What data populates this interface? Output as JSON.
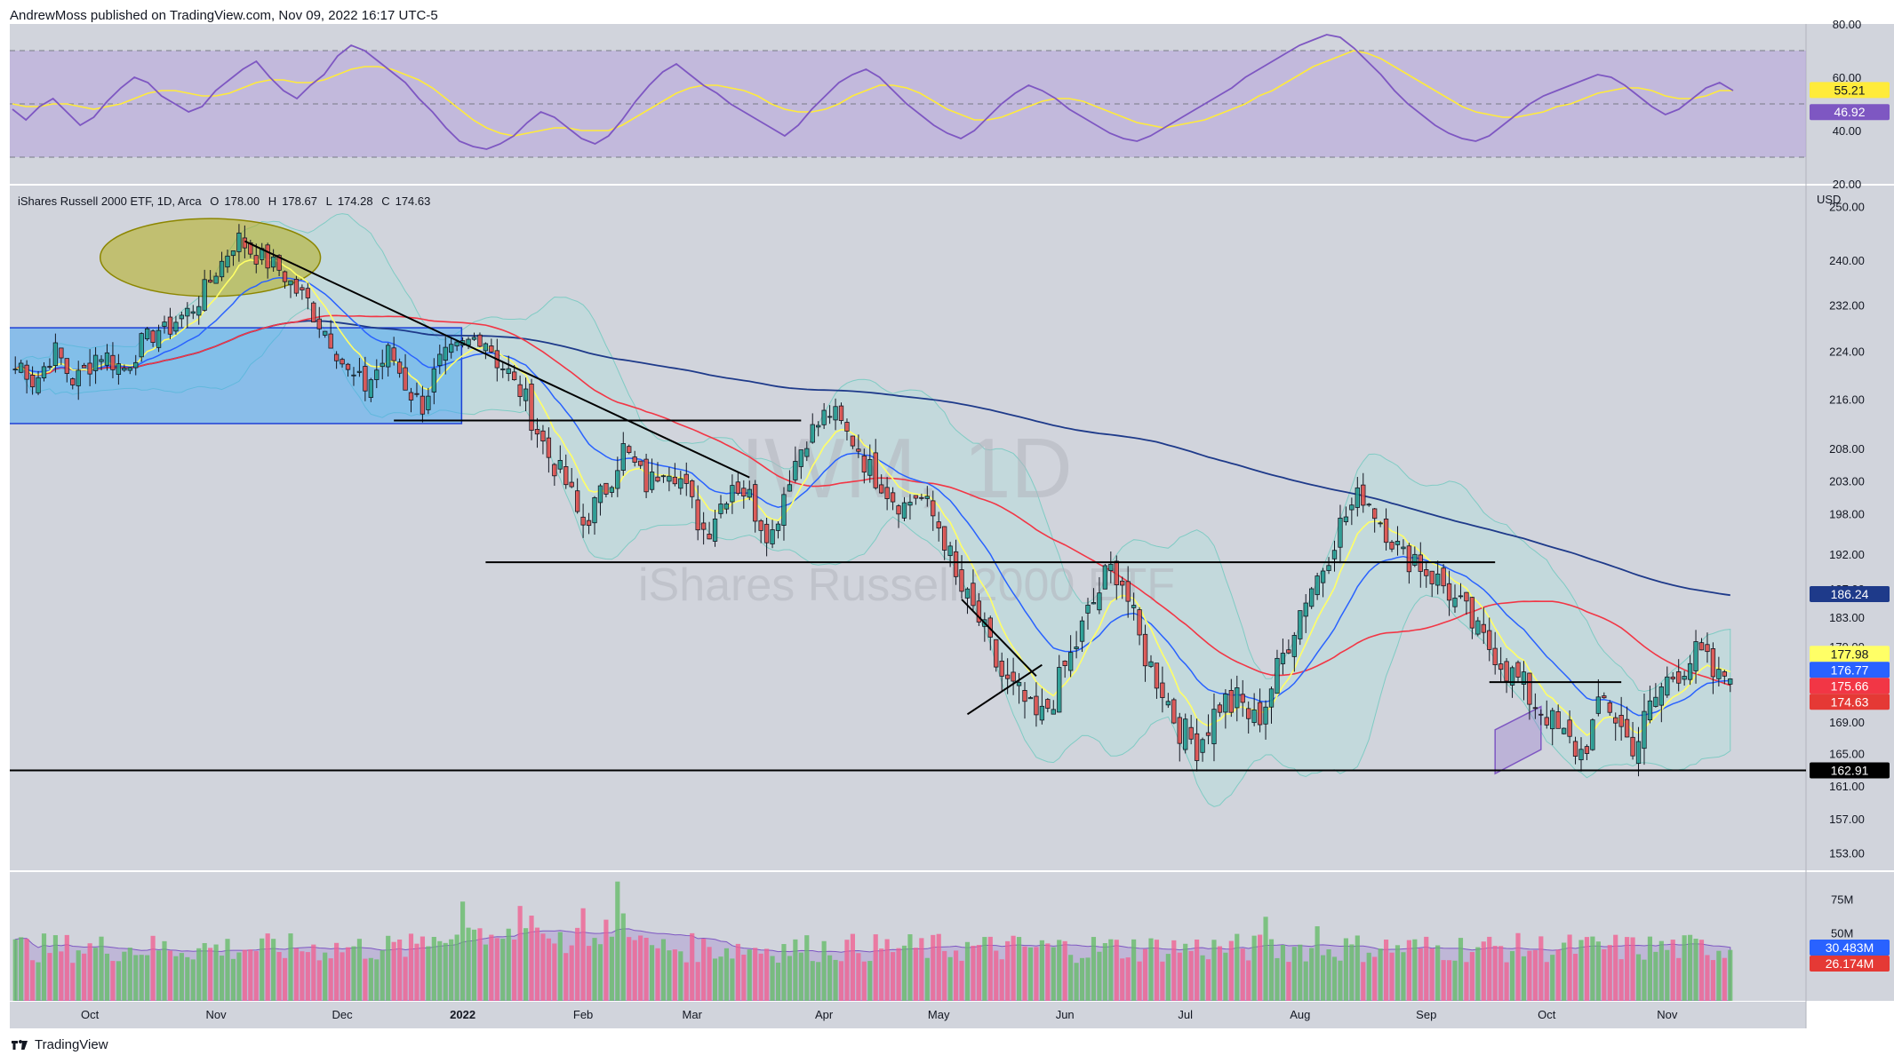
{
  "header": {
    "attribution": "AndrewMoss published on TradingView.com, Nov 09, 2022 16:17 UTC-5"
  },
  "footer": {
    "brand": "TradingView"
  },
  "colors": {
    "up_candle": "#26a69a",
    "down_candle": "#ef5350",
    "sma_yellow": "#ffff66",
    "ema_blue": "#2962ff",
    "sma_red": "#f23645",
    "sma_navy": "#1e3a8a",
    "bollinger_fill": "#b2dfdb",
    "rsi_line": "#7e57c2",
    "rsi_band": "#b39ddb",
    "pane_bg": "#d1d4dc"
  },
  "chart_data": [
    {
      "type": "line",
      "pane": "rsi",
      "ylim": [
        20,
        80
      ],
      "yticks": [
        "80.00",
        "60.00",
        "40.00",
        "20.00"
      ],
      "bands": [
        30,
        50,
        70
      ],
      "last_values": [
        {
          "label": "55.21",
          "value": 55.21,
          "color": "#ffeb3b",
          "text_color": "#131722"
        },
        {
          "label": "46.92",
          "value": 46.92,
          "color": "#7e57c2",
          "text_color": "#ffffff"
        }
      ],
      "rsi": [
        48,
        44,
        49,
        52,
        47,
        42,
        45,
        51,
        56,
        60,
        58,
        53,
        50,
        47,
        49,
        55,
        59,
        63,
        66,
        60,
        55,
        52,
        57,
        61,
        68,
        72,
        70,
        66,
        62,
        58,
        52,
        47,
        41,
        36,
        34,
        33,
        35,
        38,
        43,
        47,
        45,
        41,
        37,
        35,
        38,
        44,
        51,
        57,
        62,
        65,
        61,
        57,
        54,
        50,
        47,
        44,
        41,
        38,
        42,
        48,
        53,
        58,
        61,
        63,
        60,
        55,
        50,
        46,
        42,
        39,
        37,
        40,
        45,
        50,
        54,
        57,
        55,
        52,
        48,
        45,
        42,
        39,
        37,
        36,
        38,
        41,
        44,
        47,
        50,
        53,
        56,
        60,
        63,
        66,
        69,
        72,
        74,
        76,
        75,
        71,
        66,
        61,
        55,
        50,
        46,
        42,
        39,
        37,
        36,
        38,
        42,
        46,
        50,
        53,
        55,
        57,
        59,
        61,
        60,
        57,
        53,
        49,
        46,
        48,
        52,
        56,
        58,
        55
      ],
      "rsi_ma": [
        50,
        49,
        49,
        50,
        50,
        49,
        48,
        49,
        50,
        52,
        54,
        55,
        55,
        54,
        53,
        53,
        54,
        56,
        58,
        59,
        59,
        58,
        58,
        59,
        61,
        63,
        64,
        64,
        63,
        61,
        59,
        56,
        52,
        48,
        44,
        41,
        39,
        38,
        39,
        40,
        41,
        41,
        40,
        40,
        40,
        42,
        45,
        48,
        51,
        54,
        56,
        57,
        57,
        56,
        55,
        53,
        50,
        48,
        47,
        47,
        48,
        50,
        53,
        55,
        57,
        57,
        56,
        54,
        51,
        48,
        46,
        44,
        44,
        45,
        47,
        49,
        51,
        52,
        52,
        51,
        49,
        47,
        45,
        43,
        42,
        41,
        42,
        43,
        44,
        46,
        48,
        50,
        53,
        55,
        58,
        61,
        64,
        66,
        68,
        70,
        69,
        67,
        64,
        61,
        58,
        55,
        52,
        49,
        47,
        46,
        45,
        45,
        46,
        47,
        49,
        50,
        52,
        54,
        55,
        56,
        56,
        55,
        53,
        52,
        52,
        53,
        55,
        55
      ]
    },
    {
      "type": "candlestick",
      "pane": "price",
      "legend": {
        "title": "iShares Russell 2000 ETF, 1D, Arca",
        "o": "178.00",
        "h": "178.67",
        "l": "174.28",
        "c": "174.63"
      },
      "watermark": {
        "symbol": "IWM, 1D",
        "name": "iShares Russell 2000 ETF"
      },
      "currency": "USD",
      "ylim": [
        151,
        254
      ],
      "yticks": [
        "250.00",
        "240.00",
        "232.00",
        "224.00",
        "216.00",
        "208.00",
        "203.00",
        "198.00",
        "192.00",
        "187.00",
        "183.00",
        "179.00",
        "174.00",
        "169.00",
        "165.00",
        "161.00",
        "157.00",
        "153.00"
      ],
      "xticks": [
        {
          "label": "Oct",
          "bold": false,
          "i": 13
        },
        {
          "label": "Nov",
          "bold": false,
          "i": 35
        },
        {
          "label": "Dec",
          "bold": false,
          "i": 57
        },
        {
          "label": "2022",
          "bold": true,
          "i": 78
        },
        {
          "label": "Feb",
          "bold": false,
          "i": 99
        },
        {
          "label": "Mar",
          "bold": false,
          "i": 118
        },
        {
          "label": "Apr",
          "bold": false,
          "i": 141
        },
        {
          "label": "May",
          "bold": false,
          "i": 161
        },
        {
          "label": "Jun",
          "bold": false,
          "i": 183
        },
        {
          "label": "Jul",
          "bold": false,
          "i": 204
        },
        {
          "label": "Aug",
          "bold": false,
          "i": 224
        },
        {
          "label": "Sep",
          "bold": false,
          "i": 246
        },
        {
          "label": "Oct",
          "bold": false,
          "i": 267
        },
        {
          "label": "Nov",
          "bold": false,
          "i": 288
        }
      ],
      "closes": [
        221,
        222,
        219,
        220,
        223,
        224,
        221,
        219,
        220,
        222,
        224,
        223,
        222,
        221,
        223,
        225,
        226,
        228,
        227,
        229,
        230,
        231,
        233,
        235,
        238,
        240,
        243,
        244,
        242,
        241,
        240,
        239,
        238,
        236,
        234,
        233,
        230,
        228,
        226,
        223,
        220,
        219,
        218,
        220,
        222,
        224,
        221,
        218,
        216,
        215,
        219,
        222,
        223,
        224,
        225,
        226,
        227,
        225,
        222,
        221,
        218,
        217,
        213,
        210,
        207,
        205,
        203,
        200,
        196,
        198,
        200,
        202,
        205,
        208,
        206,
        204,
        202,
        204,
        206,
        205,
        203,
        200,
        197,
        195,
        198,
        200,
        203,
        202,
        201,
        198,
        196,
        195,
        200,
        204,
        207,
        210,
        211,
        213,
        214,
        212,
        210,
        209,
        206,
        204,
        203,
        201,
        200,
        199,
        201,
        200,
        198,
        196,
        193,
        188,
        186,
        184,
        182,
        179,
        176,
        174,
        173,
        172,
        170,
        169,
        171,
        173,
        176,
        178,
        181,
        184,
        186,
        189,
        190,
        188,
        184,
        180,
        177,
        175,
        173,
        170,
        168,
        167,
        166,
        168,
        170,
        172,
        171,
        172,
        170,
        169,
        171,
        174,
        177,
        180,
        183,
        186,
        188,
        190,
        193,
        196,
        198,
        200,
        201,
        199,
        197,
        195,
        193,
        191,
        192,
        190,
        189,
        188,
        187,
        185,
        184,
        182,
        180,
        179,
        178,
        176,
        175,
        174,
        172,
        171,
        170,
        168,
        167,
        166,
        165,
        167,
        170,
        172,
        170,
        168,
        166,
        167,
        170,
        172,
        174,
        175,
        176,
        177,
        178,
        177,
        175,
        174,
        178
      ],
      "close_series_note": "",
      "last_values": [
        {
          "label": "186.24",
          "value": 186.24,
          "color": "#1e3a8a",
          "text_color": "#ffffff"
        },
        {
          "label": "177.98",
          "value": 177.98,
          "color": "#ffff66",
          "text_color": "#131722"
        },
        {
          "label": "176.77",
          "value": 176.77,
          "color": "#2962ff",
          "text_color": "#ffffff"
        },
        {
          "label": "175.66",
          "value": 175.66,
          "color": "#f23645",
          "text_color": "#ffffff"
        },
        {
          "label": "174.63",
          "value": 174.63,
          "color": "#e53935",
          "text_color": "#ffffff"
        },
        {
          "label": "162.91",
          "value": 162.91,
          "color": "#000000",
          "text_color": "#ffffff"
        }
      ],
      "horizontal_lines": [
        {
          "y": 162.91,
          "from_i": 0,
          "to_i": 300
        },
        {
          "y": 190.8,
          "from_i": 82,
          "to_i": 258
        },
        {
          "y": 212.5,
          "from_i": 66,
          "to_i": 137
        },
        {
          "y": 174.2,
          "from_i": 257,
          "to_i": 280
        }
      ],
      "trendlines": [
        {
          "from": [
            40,
            243.5
          ],
          "to": [
            128,
            203.5
          ]
        },
        {
          "from": [
            165,
            185.5
          ],
          "to": [
            178,
            175
          ]
        },
        {
          "from": [
            166,
            170
          ],
          "to": [
            179,
            176.5
          ]
        }
      ],
      "rect_zone": {
        "from_i": 0,
        "to_i": 78,
        "y_top": 228,
        "y_bottom": 212
      },
      "ellipse_zone": {
        "center_i": 34,
        "center_y": 240.5,
        "rx_bars": 12,
        "ry": 7
      },
      "channel": {
        "from_i": 258,
        "to_i": 266
      }
    },
    {
      "type": "bar",
      "pane": "volume",
      "ylim": [
        0,
        95
      ],
      "yticks": [
        "75M",
        "50M"
      ],
      "last_values": [
        {
          "label": "30.483M",
          "value": 30.483,
          "color": "#2962ff",
          "text_color": "#ffffff"
        },
        {
          "label": "26.174M",
          "value": 26.174,
          "color": "#e53935",
          "text_color": "#ffffff"
        }
      ]
    }
  ]
}
